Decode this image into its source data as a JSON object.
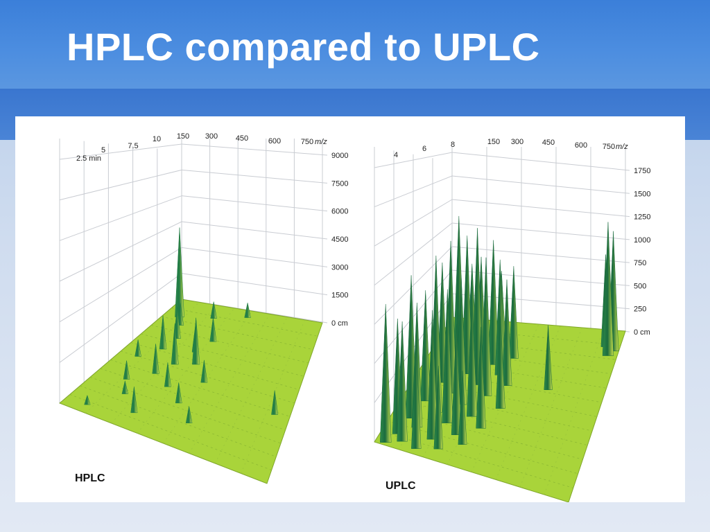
{
  "slide": {
    "title": "HPLC compared to UPLC"
  },
  "chart_data": [
    {
      "type": "surface3d",
      "label": "HPLC",
      "time_axis": {
        "unit": "min",
        "ticks": [
          "2.5 min",
          "5",
          "7.5",
          "10"
        ]
      },
      "mz_axis": {
        "unit": "m/z",
        "ticks": [
          "150",
          "300",
          "450",
          "600",
          "750"
        ],
        "unit_label": "m/z"
      },
      "intensity_axis": {
        "unit": "cm",
        "ticks": [
          "9000",
          "7500",
          "6000",
          "4500",
          "3000",
          "1500",
          "0 cm"
        ],
        "range": [
          0,
          9000
        ]
      },
      "surface_color": "#a9d43a",
      "peak_color": "#1f7a45",
      "peaks": [
        {
          "t": 0.06,
          "m": 0.1,
          "h": 500
        },
        {
          "t": 0.12,
          "m": 0.3,
          "h": 1400
        },
        {
          "t": 0.18,
          "m": 0.55,
          "h": 900
        },
        {
          "t": 0.22,
          "m": 0.2,
          "h": 700
        },
        {
          "t": 0.28,
          "m": 0.45,
          "h": 1100
        },
        {
          "t": 0.32,
          "m": 0.15,
          "h": 1000
        },
        {
          "t": 0.36,
          "m": 0.35,
          "h": 1300
        },
        {
          "t": 0.42,
          "m": 0.25,
          "h": 1600
        },
        {
          "t": 0.46,
          "m": 0.5,
          "h": 1200
        },
        {
          "t": 0.5,
          "m": 0.1,
          "h": 900
        },
        {
          "t": 0.52,
          "m": 0.3,
          "h": 2200
        },
        {
          "t": 0.56,
          "m": 0.4,
          "h": 2500
        },
        {
          "t": 0.6,
          "m": 0.18,
          "h": 1800
        },
        {
          "t": 0.64,
          "m": 0.35,
          "h": 1400
        },
        {
          "t": 0.7,
          "m": 0.2,
          "h": 1700
        },
        {
          "t": 0.74,
          "m": 0.4,
          "h": 1300
        },
        {
          "t": 0.8,
          "m": 0.15,
          "h": 1200
        },
        {
          "t": 0.86,
          "m": 0.1,
          "h": 4800
        },
        {
          "t": 0.9,
          "m": 0.3,
          "h": 900
        },
        {
          "t": 0.4,
          "m": 0.92,
          "h": 1300
        },
        {
          "t": 0.95,
          "m": 0.5,
          "h": 800
        }
      ]
    },
    {
      "type": "surface3d",
      "label": "UPLC",
      "time_axis": {
        "unit": "min",
        "ticks": [
          "4",
          "6",
          "8"
        ]
      },
      "mz_axis": {
        "unit": "m/z",
        "ticks": [
          "150",
          "300",
          "450",
          "600",
          "750"
        ],
        "unit_label": "m/z"
      },
      "intensity_axis": {
        "unit": "cm",
        "ticks": [
          "1750",
          "1500",
          "1250",
          "1000",
          "750",
          "500",
          "250",
          "0 cm"
        ],
        "range": [
          0,
          1750
        ]
      },
      "surface_color": "#a9d43a",
      "peak_color": "#1a6b3e",
      "peaks": [
        {
          "t": 0.02,
          "m": 0.05,
          "h": 1500
        },
        {
          "t": 0.04,
          "m": 0.2,
          "h": 1100
        },
        {
          "t": 0.06,
          "m": 0.12,
          "h": 1300
        },
        {
          "t": 0.08,
          "m": 0.3,
          "h": 900
        },
        {
          "t": 0.1,
          "m": 0.08,
          "h": 1250
        },
        {
          "t": 0.13,
          "m": 0.25,
          "h": 1400
        },
        {
          "t": 0.15,
          "m": 0.4,
          "h": 800
        },
        {
          "t": 0.18,
          "m": 0.15,
          "h": 1350
        },
        {
          "t": 0.2,
          "m": 0.35,
          "h": 1200
        },
        {
          "t": 0.23,
          "m": 0.1,
          "h": 1550
        },
        {
          "t": 0.26,
          "m": 0.28,
          "h": 1450
        },
        {
          "t": 0.28,
          "m": 0.45,
          "h": 1100
        },
        {
          "t": 0.31,
          "m": 0.2,
          "h": 1700
        },
        {
          "t": 0.34,
          "m": 0.38,
          "h": 1300
        },
        {
          "t": 0.37,
          "m": 0.12,
          "h": 1200
        },
        {
          "t": 0.4,
          "m": 0.3,
          "h": 1400
        },
        {
          "t": 0.43,
          "m": 0.5,
          "h": 1000
        },
        {
          "t": 0.46,
          "m": 0.22,
          "h": 1650
        },
        {
          "t": 0.49,
          "m": 0.4,
          "h": 1500
        },
        {
          "t": 0.52,
          "m": 0.15,
          "h": 1300
        },
        {
          "t": 0.55,
          "m": 0.33,
          "h": 1700
        },
        {
          "t": 0.58,
          "m": 0.48,
          "h": 1150
        },
        {
          "t": 0.61,
          "m": 0.25,
          "h": 1500
        },
        {
          "t": 0.64,
          "m": 0.42,
          "h": 1250
        },
        {
          "t": 0.67,
          "m": 0.18,
          "h": 1600
        },
        {
          "t": 0.7,
          "m": 0.36,
          "h": 1350
        },
        {
          "t": 0.73,
          "m": 0.28,
          "h": 1100
        },
        {
          "t": 0.76,
          "m": 0.45,
          "h": 1000
        },
        {
          "t": 0.8,
          "m": 0.2,
          "h": 900
        },
        {
          "t": 0.84,
          "m": 0.35,
          "h": 800
        },
        {
          "t": 0.6,
          "m": 0.7,
          "h": 700
        },
        {
          "t": 0.85,
          "m": 0.95,
          "h": 1450
        },
        {
          "t": 0.88,
          "m": 0.97,
          "h": 1300
        },
        {
          "t": 0.9,
          "m": 0.92,
          "h": 1000
        }
      ]
    }
  ]
}
